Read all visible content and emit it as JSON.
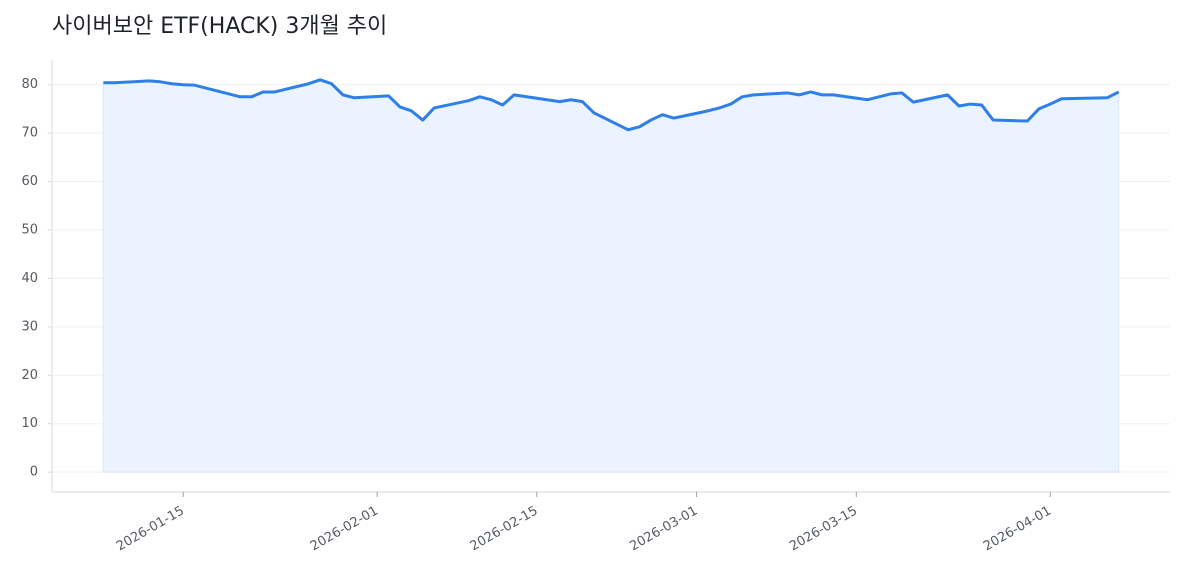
{
  "chart_data": {
    "type": "line",
    "title": "사이버보안 ETF(HACK) 3개월 추이",
    "x": [
      "2026-01-08",
      "2026-01-09",
      "2026-01-12",
      "2026-01-13",
      "2026-01-14",
      "2026-01-15",
      "2026-01-16",
      "2026-01-20",
      "2026-01-21",
      "2026-01-22",
      "2026-01-23",
      "2026-01-26",
      "2026-01-27",
      "2026-01-28",
      "2026-01-29",
      "2026-01-30",
      "2026-02-02",
      "2026-02-03",
      "2026-02-04",
      "2026-02-05",
      "2026-02-06",
      "2026-02-09",
      "2026-02-10",
      "2026-02-11",
      "2026-02-12",
      "2026-02-13",
      "2026-02-17",
      "2026-02-18",
      "2026-02-19",
      "2026-02-20",
      "2026-02-23",
      "2026-02-24",
      "2026-02-25",
      "2026-02-26",
      "2026-02-27",
      "2026-03-02",
      "2026-03-03",
      "2026-03-04",
      "2026-03-05",
      "2026-03-06",
      "2026-03-09",
      "2026-03-10",
      "2026-03-11",
      "2026-03-12",
      "2026-03-13",
      "2026-03-16",
      "2026-03-17",
      "2026-03-18",
      "2026-03-19",
      "2026-03-20",
      "2026-03-23",
      "2026-03-24",
      "2026-03-25",
      "2026-03-26",
      "2026-03-27",
      "2026-03-30",
      "2026-03-31",
      "2026-04-01",
      "2026-04-02",
      "2026-04-06",
      "2026-04-07"
    ],
    "series": [
      {
        "color": "#2f7fe8",
        "fill": "#ebf3fe",
        "values": [
          80.4,
          80.4,
          80.8,
          80.6,
          80.2,
          80.0,
          79.9,
          77.5,
          77.5,
          78.5,
          78.5,
          80.2,
          81.0,
          80.2,
          77.9,
          77.3,
          77.7,
          75.4,
          74.6,
          72.7,
          75.2,
          76.7,
          77.5,
          76.9,
          75.8,
          77.9,
          76.5,
          76.9,
          76.5,
          74.2,
          70.7,
          71.3,
          72.7,
          73.8,
          73.1,
          74.6,
          75.2,
          76.0,
          77.5,
          77.9,
          78.3,
          77.9,
          78.5,
          77.9,
          77.9,
          76.9,
          77.5,
          78.1,
          78.3,
          76.4,
          77.9,
          75.6,
          76.0,
          75.8,
          72.7,
          72.5,
          75.0,
          76.0,
          77.1,
          77.3,
          78.5
        ]
      }
    ],
    "xlim": [
      "2026-01-03T12:00:00Z",
      "2026-04-11T12:00:00Z"
    ],
    "xticks": [
      "2026-01-15",
      "2026-02-01",
      "2026-02-15",
      "2026-03-01",
      "2026-03-15",
      "2026-04-01"
    ],
    "ylim": [
      -4.1,
      85.1
    ],
    "yticks": [
      0,
      10,
      20,
      30,
      40,
      50,
      60,
      70,
      80
    ],
    "grid": true
  }
}
